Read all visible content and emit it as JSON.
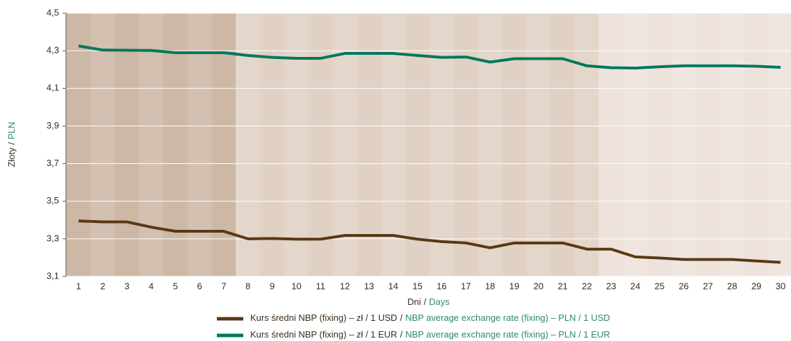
{
  "chart_data": {
    "type": "line",
    "separator": "/",
    "y_label": "Złoty",
    "y_label_en": "PLN",
    "x_label": "Dni",
    "x_label_en": "Days",
    "categories": [
      "1",
      "2",
      "3",
      "4",
      "5",
      "6",
      "7",
      "8",
      "9",
      "10",
      "11",
      "12",
      "13",
      "14",
      "15",
      "16",
      "17",
      "18",
      "19",
      "20",
      "21",
      "22",
      "23",
      "24",
      "25",
      "26",
      "27",
      "28",
      "29",
      "30"
    ],
    "series": [
      {
        "name": "Kurs średni NBP (fixing) – zł / 1 USD",
        "name_en": "NBP average exchange rate (fixing) – PLN / 1 USD",
        "color": "#5a3815",
        "values": [
          3.395,
          3.39,
          3.39,
          3.362,
          3.34,
          3.34,
          3.34,
          3.3,
          3.302,
          3.298,
          3.298,
          3.318,
          3.318,
          3.318,
          3.298,
          3.285,
          3.278,
          3.252,
          3.278,
          3.278,
          3.278,
          3.245,
          3.245,
          3.204,
          3.198,
          3.19,
          3.19,
          3.19,
          3.182,
          3.175
        ]
      },
      {
        "name": "Kurs średni NBP (fixing) – zł / 1 EUR",
        "name_en": "NBP average exchange rate (fixing) – PLN / 1 EUR",
        "color": "#00785a",
        "values": [
          4.326,
          4.304,
          4.303,
          4.302,
          4.29,
          4.29,
          4.29,
          4.275,
          4.265,
          4.26,
          4.26,
          4.286,
          4.286,
          4.286,
          4.275,
          4.265,
          4.267,
          4.24,
          4.258,
          4.258,
          4.258,
          4.22,
          4.21,
          4.208,
          4.215,
          4.22,
          4.22,
          4.22,
          4.218,
          4.212
        ]
      }
    ],
    "ylim": [
      3.1,
      4.5
    ],
    "yticks": [
      {
        "value": 3.1,
        "label": "3,1"
      },
      {
        "value": 3.3,
        "label": "3,3"
      },
      {
        "value": 3.5,
        "label": "3,5"
      },
      {
        "value": 3.7,
        "label": "3,7"
      },
      {
        "value": 3.9,
        "label": "3,9"
      },
      {
        "value": 4.1,
        "label": "4,1"
      },
      {
        "value": 4.3,
        "label": "4,3"
      },
      {
        "value": 4.5,
        "label": "4,5"
      }
    ],
    "grid": true
  }
}
